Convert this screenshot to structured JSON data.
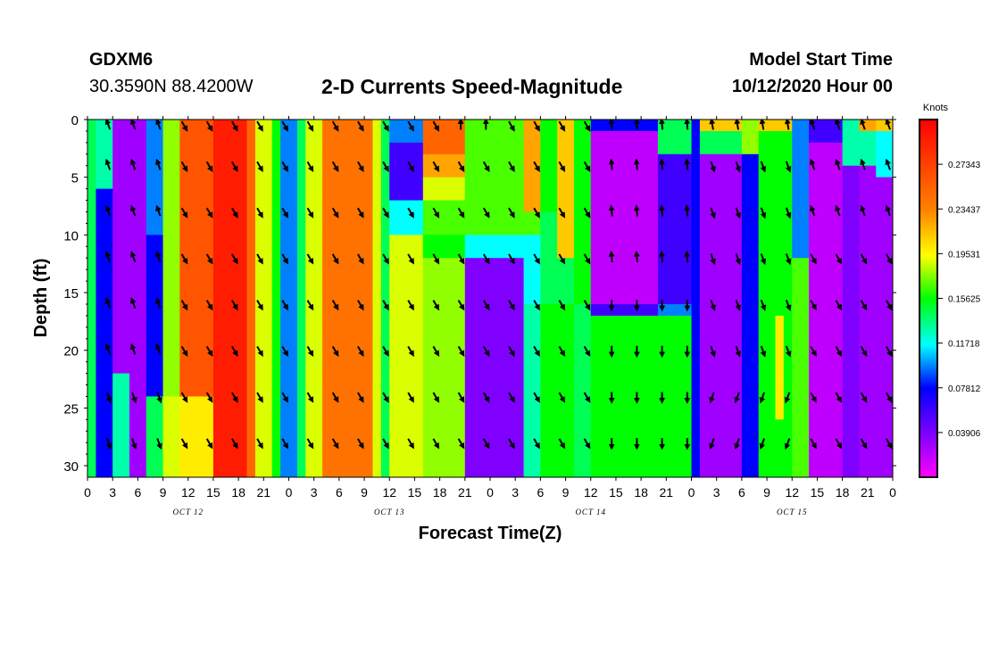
{
  "header": {
    "station": "GDXM6",
    "coords": "30.3590N 88.4200W",
    "title": "2-D Currents Speed-Magnitude",
    "model_start_label": "Model Start Time",
    "model_start_value": "10/12/2020 Hour 00"
  },
  "chart_data": {
    "type": "heatmap",
    "title": "2-D Currents Speed-Magnitude",
    "xlabel": "Forecast Time(Z)",
    "ylabel": "Depth (ft)",
    "colorbar_unit": "Knots",
    "y_reversed": true,
    "ylim": [
      31,
      0
    ],
    "y_ticks": [
      0,
      5,
      10,
      15,
      20,
      25,
      30
    ],
    "x_hours_range": [
      0,
      96
    ],
    "x_tick_labels": [
      "0",
      "3",
      "6",
      "9",
      "12",
      "15",
      "18",
      "21",
      "0",
      "3",
      "6",
      "9",
      "12",
      "15",
      "18",
      "21",
      "0",
      "3",
      "6",
      "9",
      "12",
      "15",
      "18",
      "21",
      "0",
      "3",
      "6",
      "9",
      "12",
      "15",
      "18",
      "21",
      "0"
    ],
    "date_labels": [
      "OCT 12",
      "OCT 13",
      "OCT 14",
      "OCT 15"
    ],
    "colorbar_ticks": [
      "0.27343",
      "0.23437",
      "0.19531",
      "0.15625",
      "0.11718",
      "0.07812",
      "0.03906"
    ],
    "colorbar_range": [
      0.0,
      0.3125
    ],
    "arrow_x_hours": [
      2.5,
      5.5,
      8.5,
      11.5,
      14.5,
      17.5,
      20.5,
      23.5,
      26.5,
      29.5,
      32.5,
      35.5,
      38.5,
      41.5,
      44.5,
      47.5,
      50.5,
      53.5,
      56.5,
      59.5,
      62.5,
      65.5,
      68.5,
      71.5,
      74.5,
      77.5,
      80.5,
      83.5,
      86.5,
      89.5,
      92.5,
      95.5
    ],
    "arrow_depths": [
      0.5,
      4,
      8,
      12,
      16,
      20,
      24,
      28
    ]
  }
}
